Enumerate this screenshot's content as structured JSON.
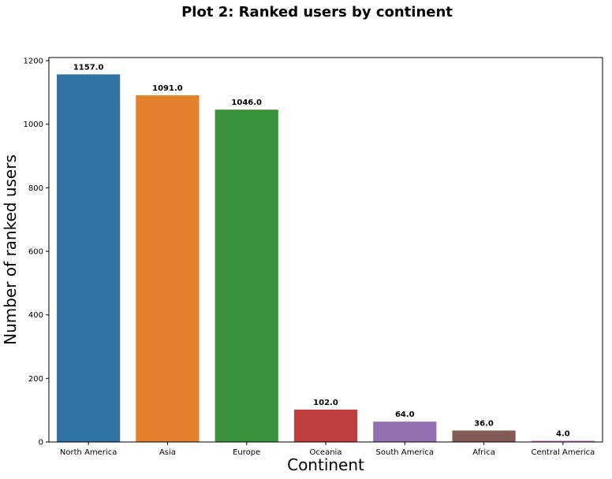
{
  "chart_data": {
    "type": "bar",
    "title": "Plot 2: Ranked users by continent",
    "xlabel": "Continent",
    "ylabel": "Number of ranked users",
    "categories": [
      "North America",
      "Asia",
      "Europe",
      "Oceania",
      "South America",
      "Africa",
      "Central America"
    ],
    "values": [
      1157,
      1091,
      1046,
      102,
      64,
      36,
      4
    ],
    "value_labels": [
      "1157.0",
      "1091.0",
      "1046.0",
      "102.0",
      "64.0",
      "36.0",
      "4.0"
    ],
    "colors": [
      "#3274a1",
      "#e1812c",
      "#3a923a",
      "#c03d3e",
      "#9372b2",
      "#845b53",
      "#d684bd"
    ],
    "ylim": [
      0,
      1210
    ],
    "yticks": [
      0,
      200,
      400,
      600,
      800,
      1000,
      1200
    ],
    "grid": false,
    "legend": "none"
  }
}
